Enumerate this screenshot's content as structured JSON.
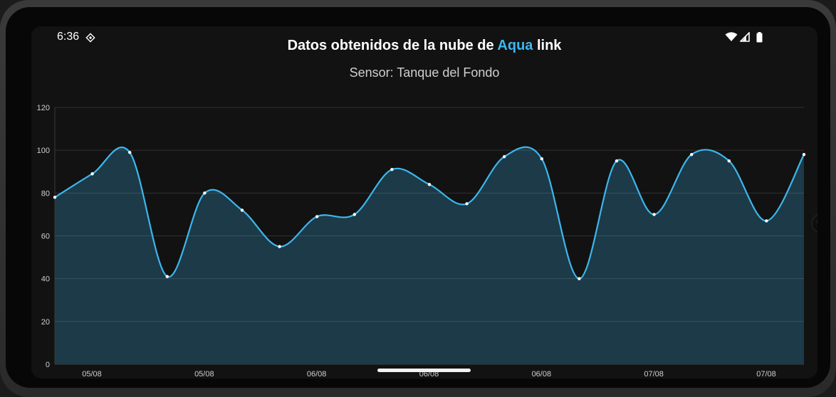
{
  "status_bar": {
    "time": "6:36"
  },
  "header": {
    "title_prefix": "Datos obtenidos de la nube de ",
    "title_accent": "Aqua",
    "title_suffix": " link",
    "subtitle": "Sensor: Tanque del Fondo"
  },
  "colors": {
    "accent": "#3cb7ee",
    "line": "#3cb7ee",
    "fill": "#1c3a48",
    "background": "#121212"
  },
  "chart_data": {
    "type": "area",
    "title": "",
    "xlabel": "",
    "ylabel": "",
    "ylim": [
      0,
      120
    ],
    "yticks": [
      0,
      20,
      40,
      60,
      80,
      100,
      120
    ],
    "xtick_labels": [
      "05/08",
      "05/08",
      "06/08",
      "06/08",
      "06/08",
      "07/08",
      "07/08"
    ],
    "grid": true,
    "series": [
      {
        "values": [
          78,
          89,
          99,
          41,
          80,
          72,
          55,
          69,
          70,
          91,
          84,
          75,
          97,
          96,
          40,
          95,
          70,
          98,
          95,
          67,
          98
        ]
      }
    ]
  }
}
